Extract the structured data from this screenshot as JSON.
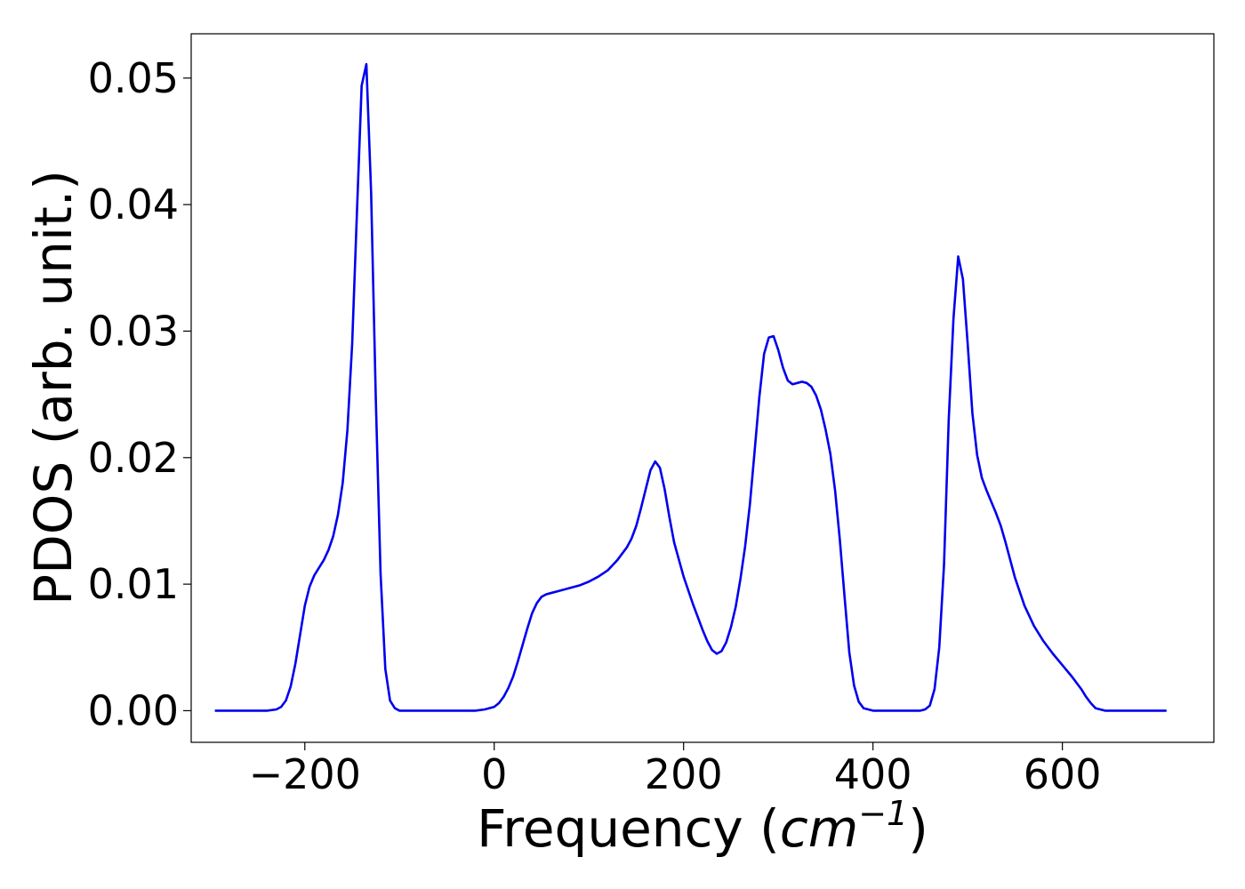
{
  "chart_data": {
    "type": "line",
    "xlabel": "Frequency (",
    "xlabel_unit_base": "cm",
    "xlabel_unit_exp": "−1",
    "xlabel_close": ")",
    "ylabel": "PDOS (arb. unit.)",
    "xlim": [
      -320,
      760
    ],
    "ylim": [
      -0.0025,
      0.0535
    ],
    "x_ticks": [
      -200,
      0,
      200,
      400,
      600
    ],
    "x_tick_labels": [
      "−200",
      "0",
      "200",
      "400",
      "600"
    ],
    "y_ticks": [
      0.0,
      0.01,
      0.02,
      0.03,
      0.04,
      0.05
    ],
    "y_tick_labels": [
      "0.00",
      "0.01",
      "0.02",
      "0.03",
      "0.04",
      "0.05"
    ],
    "grid": false,
    "series": [
      {
        "color": "#0000ee",
        "x": [
          -295,
          -240,
          -230,
          -225,
          -220,
          -215,
          -210,
          -205,
          -200,
          -195,
          -190,
          -185,
          -180,
          -175,
          -170,
          -165,
          -160,
          -155,
          -150,
          -145,
          -140,
          -135,
          -130,
          -125,
          -120,
          -115,
          -110,
          -105,
          -100,
          -90,
          -60,
          -20,
          -10,
          0,
          5,
          10,
          15,
          20,
          25,
          30,
          35,
          40,
          45,
          50,
          55,
          60,
          70,
          80,
          90,
          100,
          110,
          120,
          130,
          140,
          145,
          150,
          155,
          160,
          165,
          170,
          175,
          180,
          185,
          190,
          200,
          210,
          220,
          225,
          230,
          235,
          240,
          245,
          250,
          255,
          260,
          265,
          270,
          275,
          280,
          285,
          290,
          295,
          300,
          305,
          310,
          315,
          320,
          325,
          330,
          335,
          340,
          345,
          350,
          355,
          360,
          365,
          370,
          375,
          380,
          385,
          390,
          395,
          400,
          420,
          450,
          455,
          460,
          465,
          470,
          475,
          480,
          485,
          490,
          495,
          500,
          505,
          510,
          515,
          520,
          525,
          530,
          535,
          540,
          545,
          550,
          560,
          570,
          580,
          590,
          600,
          610,
          620,
          625,
          630,
          635,
          640,
          645,
          650,
          700,
          710
        ],
        "y": [
          0.0,
          0.0,
          0.0001,
          0.0003,
          0.0008,
          0.0019,
          0.0037,
          0.006,
          0.0083,
          0.0098,
          0.0107,
          0.0113,
          0.0119,
          0.0127,
          0.0138,
          0.0155,
          0.018,
          0.0222,
          0.029,
          0.0393,
          0.0494,
          0.0511,
          0.041,
          0.0245,
          0.0108,
          0.0033,
          0.0008,
          0.0002,
          0.0,
          0.0,
          0.0,
          0.0,
          0.0001,
          0.0003,
          0.0006,
          0.0011,
          0.0018,
          0.0027,
          0.0039,
          0.0052,
          0.0065,
          0.0077,
          0.0085,
          0.009,
          0.0092,
          0.0093,
          0.0095,
          0.0097,
          0.0099,
          0.0102,
          0.0106,
          0.0111,
          0.0119,
          0.0129,
          0.0136,
          0.0146,
          0.016,
          0.0175,
          0.019,
          0.0197,
          0.0192,
          0.0175,
          0.0153,
          0.0133,
          0.0106,
          0.0084,
          0.0064,
          0.0055,
          0.0048,
          0.0045,
          0.0047,
          0.0054,
          0.0066,
          0.0082,
          0.0104,
          0.013,
          0.0163,
          0.0205,
          0.0248,
          0.0282,
          0.0295,
          0.0296,
          0.0285,
          0.0271,
          0.0261,
          0.0258,
          0.0259,
          0.026,
          0.0259,
          0.0256,
          0.0249,
          0.0238,
          0.0222,
          0.0203,
          0.0174,
          0.0135,
          0.009,
          0.0046,
          0.002,
          0.0007,
          0.0002,
          0.0001,
          0.0,
          0.0,
          0.0,
          0.0001,
          0.0004,
          0.0017,
          0.005,
          0.0115,
          0.023,
          0.031,
          0.0359,
          0.0341,
          0.029,
          0.0235,
          0.0202,
          0.0184,
          0.0174,
          0.0165,
          0.0156,
          0.0146,
          0.0133,
          0.0119,
          0.0105,
          0.0083,
          0.0067,
          0.0055,
          0.0045,
          0.0036,
          0.0027,
          0.0017,
          0.0011,
          0.0006,
          0.0002,
          0.0001,
          0.0,
          0.0,
          0.0,
          0.0
        ]
      }
    ]
  }
}
